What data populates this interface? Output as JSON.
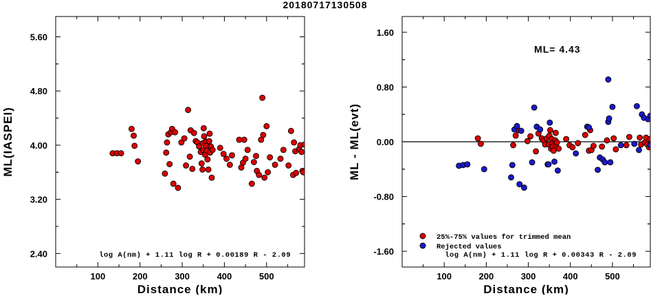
{
  "title": "20180717130508",
  "colors": {
    "used": "#dd0000",
    "rejected": "#1a1acc",
    "marker_edge": "#000000"
  },
  "chart_data": [
    {
      "type": "scatter",
      "xlabel": "Distance (km)",
      "ylabel": "ML(IASPEI)",
      "xlim": [
        0,
        590
      ],
      "ylim": [
        2.2,
        5.9
      ],
      "xticks": [
        100,
        200,
        300,
        400,
        500
      ],
      "yticks": [
        2.4,
        3.2,
        4.0,
        4.8,
        5.6
      ],
      "x_tick_labels": [
        "100",
        "200",
        "300",
        "400",
        "500"
      ],
      "y_tick_labels": [
        "2.40",
        "3.20",
        "4.00",
        "4.80",
        "5.60"
      ],
      "annotation": "log A(nm) + 1.11 log R + 0.00189 R - 2.09",
      "series": [
        {
          "points": [
            [
              135,
              3.88
            ],
            [
              145,
              3.88
            ],
            [
              155,
              3.88
            ],
            [
              180,
              4.24
            ],
            [
              185,
              4.14
            ],
            [
              187,
              3.99
            ],
            [
              195,
              3.76
            ],
            [
              259,
              3.58
            ],
            [
              262,
              3.89
            ],
            [
              264,
              4.04
            ],
            [
              267,
              4.16
            ],
            [
              270,
              3.72
            ],
            [
              273,
              4.19
            ],
            [
              276,
              4.24
            ],
            [
              279,
              3.43
            ],
            [
              283,
              4.19
            ],
            [
              290,
              3.37
            ],
            [
              298,
              4.04
            ],
            [
              305,
              4.1
            ],
            [
              309,
              3.7
            ],
            [
              314,
              4.52
            ],
            [
              318,
              3.83
            ],
            [
              320,
              4.22
            ],
            [
              324,
              3.65
            ],
            [
              328,
              4.18
            ],
            [
              332,
              4.06
            ],
            [
              336,
              4.04
            ],
            [
              340,
              3.98
            ],
            [
              344,
              3.9
            ],
            [
              346,
              3.73
            ],
            [
              348,
              3.64
            ],
            [
              349,
              4.03
            ],
            [
              350,
              3.93
            ],
            [
              351,
              4.25
            ],
            [
              352,
              4.13
            ],
            [
              354,
              3.86
            ],
            [
              356,
              4.05
            ],
            [
              357,
              3.99
            ],
            [
              358,
              3.92
            ],
            [
              360,
              3.79
            ],
            [
              362,
              3.64
            ],
            [
              364,
              4.06
            ],
            [
              365,
              4.17
            ],
            [
              366,
              3.89
            ],
            [
              368,
              3.98
            ],
            [
              370,
              3.52
            ],
            [
              372,
              3.93
            ],
            [
              390,
              3.96
            ],
            [
              398,
              3.87
            ],
            [
              405,
              3.8
            ],
            [
              413,
              3.71
            ],
            [
              418,
              3.85
            ],
            [
              435,
              4.08
            ],
            [
              440,
              3.67
            ],
            [
              444,
              3.74
            ],
            [
              447,
              4.08
            ],
            [
              450,
              3.8
            ],
            [
              455,
              3.93
            ],
            [
              465,
              3.43
            ],
            [
              470,
              3.75
            ],
            [
              475,
              3.84
            ],
            [
              477,
              3.62
            ],
            [
              482,
              3.56
            ],
            [
              487,
              4.08
            ],
            [
              490,
              4.7
            ],
            [
              492,
              4.15
            ],
            [
              495,
              3.52
            ],
            [
              500,
              4.28
            ],
            [
              503,
              3.6
            ],
            [
              508,
              3.82
            ],
            [
              520,
              3.71
            ],
            [
              533,
              3.8
            ],
            [
              540,
              3.93
            ],
            [
              552,
              3.7
            ],
            [
              558,
              4.21
            ],
            [
              563,
              3.56
            ],
            [
              565,
              4.04
            ],
            [
              568,
              3.91
            ],
            [
              570,
              3.59
            ],
            [
              577,
              3.94
            ],
            [
              580,
              4.0
            ],
            [
              583,
              3.9
            ],
            [
              585,
              3.62
            ],
            [
              587,
              3.6
            ],
            [
              590,
              4.01
            ]
          ]
        }
      ]
    },
    {
      "type": "scatter",
      "xlabel": "Distance (km)",
      "ylabel": "ML - ML(evt)",
      "xlim": [
        0,
        590
      ],
      "ylim": [
        -1.83,
        1.83
      ],
      "xticks": [
        100,
        200,
        300,
        400,
        500
      ],
      "yticks": [
        -1.6,
        -0.8,
        0.0,
        0.8,
        1.6
      ],
      "x_tick_labels": [
        "100",
        "200",
        "300",
        "400",
        "500"
      ],
      "y_tick_labels": [
        "-1.60",
        "-0.80",
        "0.00",
        "0.80",
        "1.60"
      ],
      "reference_line": 0,
      "ml_label": "ML= 4.43",
      "legend": [
        "25%-75% values for trimmed mean",
        "Rejected values"
      ],
      "annotation": "log A(nm) + 1.11 log R + 0.00343 R - 2.09",
      "series": [
        {
          "name": "25%-75% values for trimmed mean",
          "points": [
            [
              180,
              0.05
            ],
            [
              187,
              -0.03
            ],
            [
              264,
              -0.05
            ],
            [
              270,
              0.09
            ],
            [
              276,
              0.17
            ],
            [
              298,
              0.01
            ],
            [
              305,
              0.08
            ],
            [
              318,
              -0.14
            ],
            [
              324,
              0.12
            ],
            [
              332,
              0.05
            ],
            [
              336,
              0.02
            ],
            [
              340,
              -0.04
            ],
            [
              344,
              0.05
            ],
            [
              349,
              -0.04
            ],
            [
              350,
              0.09
            ],
            [
              352,
              0.17
            ],
            [
              354,
              -0.1
            ],
            [
              356,
              0.04
            ],
            [
              357,
              -0.02
            ],
            [
              358,
              -0.07
            ],
            [
              360,
              -0.13
            ],
            [
              364,
              0.02
            ],
            [
              365,
              0.13
            ],
            [
              366,
              -0.06
            ],
            [
              368,
              -0.01
            ],
            [
              372,
              -0.1
            ],
            [
              390,
              0.04
            ],
            [
              398,
              -0.05
            ],
            [
              405,
              -0.08
            ],
            [
              418,
              -0.02
            ],
            [
              435,
              0.1
            ],
            [
              444,
              -0.13
            ],
            [
              447,
              0.17
            ],
            [
              450,
              -0.12
            ],
            [
              455,
              -0.06
            ],
            [
              475,
              -0.07
            ],
            [
              487,
              0.02
            ],
            [
              503,
              0.05
            ],
            [
              508,
              -0.11
            ],
            [
              533,
              -0.05
            ],
            [
              540,
              0.07
            ],
            [
              565,
              0.06
            ],
            [
              568,
              -0.04
            ],
            [
              577,
              -0.01
            ],
            [
              580,
              0.06
            ],
            [
              583,
              -0.04
            ],
            [
              587,
              -0.08
            ],
            [
              590,
              0.04
            ]
          ]
        },
        {
          "name": "Rejected values",
          "points": [
            [
              135,
              -0.35
            ],
            [
              145,
              -0.34
            ],
            [
              155,
              -0.33
            ],
            [
              195,
              -0.4
            ],
            [
              259,
              -0.52
            ],
            [
              262,
              -0.34
            ],
            [
              267,
              0.18
            ],
            [
              273,
              0.23
            ],
            [
              279,
              -0.62
            ],
            [
              283,
              0.16
            ],
            [
              290,
              -0.67
            ],
            [
              309,
              -0.3
            ],
            [
              314,
              0.5
            ],
            [
              320,
              0.22
            ],
            [
              328,
              0.18
            ],
            [
              346,
              -0.33
            ],
            [
              348,
              -0.33
            ],
            [
              351,
              0.28
            ],
            [
              362,
              -0.29
            ],
            [
              370,
              -0.42
            ],
            [
              413,
              -0.17
            ],
            [
              440,
              0.22
            ],
            [
              444,
              0.21
            ],
            [
              465,
              -0.41
            ],
            [
              470,
              -0.23
            ],
            [
              477,
              -0.26
            ],
            [
              482,
              -0.3
            ],
            [
              490,
              0.29
            ],
            [
              490,
              0.91
            ],
            [
              492,
              0.34
            ],
            [
              495,
              -0.3
            ],
            [
              500,
              0.51
            ],
            [
              520,
              -0.05
            ],
            [
              552,
              -0.03
            ],
            [
              558,
              0.52
            ],
            [
              563,
              -0.12
            ],
            [
              570,
              0.4
            ],
            [
              575,
              0.35
            ],
            [
              585,
              0.33
            ],
            [
              590,
              0.38
            ],
            [
              590,
              -0.05
            ]
          ]
        }
      ]
    }
  ]
}
